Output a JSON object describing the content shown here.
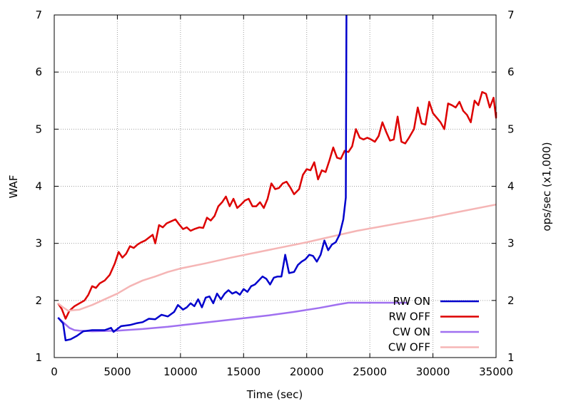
{
  "chart_data": {
    "type": "line",
    "xlabel": "Time (sec)",
    "ylabel": "WAF",
    "y2label": "ops/sec (x1,000)",
    "xlim": [
      0,
      35000
    ],
    "ylim": [
      1,
      7
    ],
    "y2lim": [
      1,
      7
    ],
    "grid": true,
    "legend_position": "bottom-right",
    "x_ticks": [
      0,
      5000,
      10000,
      15000,
      20000,
      25000,
      30000,
      35000
    ],
    "y_ticks": [
      1,
      2,
      3,
      4,
      5,
      6,
      7
    ],
    "y2_ticks": [
      1,
      2,
      3,
      4,
      5,
      6,
      7
    ],
    "series": [
      {
        "name": "RW ON",
        "color": "#0000cc",
        "axis": "y",
        "points": [
          [
            300,
            1.7
          ],
          [
            700,
            1.6
          ],
          [
            900,
            1.3
          ],
          [
            1300,
            1.32
          ],
          [
            1800,
            1.38
          ],
          [
            2300,
            1.46
          ],
          [
            3000,
            1.48
          ],
          [
            4000,
            1.48
          ],
          [
            4500,
            1.52
          ],
          [
            4700,
            1.45
          ],
          [
            5000,
            1.5
          ],
          [
            5300,
            1.55
          ],
          [
            6000,
            1.57
          ],
          [
            6500,
            1.6
          ],
          [
            7000,
            1.62
          ],
          [
            7500,
            1.68
          ],
          [
            8000,
            1.67
          ],
          [
            8500,
            1.75
          ],
          [
            9000,
            1.72
          ],
          [
            9500,
            1.8
          ],
          [
            9800,
            1.92
          ],
          [
            10200,
            1.84
          ],
          [
            10500,
            1.88
          ],
          [
            10800,
            1.95
          ],
          [
            11100,
            1.9
          ],
          [
            11400,
            2.02
          ],
          [
            11700,
            1.88
          ],
          [
            12000,
            2.05
          ],
          [
            12300,
            2.07
          ],
          [
            12600,
            1.95
          ],
          [
            12900,
            2.12
          ],
          [
            13200,
            2.02
          ],
          [
            13500,
            2.12
          ],
          [
            13800,
            2.18
          ],
          [
            14100,
            2.12
          ],
          [
            14400,
            2.15
          ],
          [
            14700,
            2.1
          ],
          [
            15000,
            2.2
          ],
          [
            15300,
            2.15
          ],
          [
            15600,
            2.25
          ],
          [
            15900,
            2.28
          ],
          [
            16200,
            2.35
          ],
          [
            16500,
            2.42
          ],
          [
            16800,
            2.38
          ],
          [
            17100,
            2.28
          ],
          [
            17400,
            2.4
          ],
          [
            17700,
            2.42
          ],
          [
            18000,
            2.42
          ],
          [
            18300,
            2.8
          ],
          [
            18600,
            2.48
          ],
          [
            19000,
            2.5
          ],
          [
            19300,
            2.62
          ],
          [
            19600,
            2.68
          ],
          [
            19900,
            2.72
          ],
          [
            20200,
            2.8
          ],
          [
            20500,
            2.78
          ],
          [
            20800,
            2.68
          ],
          [
            21100,
            2.8
          ],
          [
            21400,
            3.05
          ],
          [
            21700,
            2.88
          ],
          [
            22000,
            2.98
          ],
          [
            22300,
            3.02
          ],
          [
            22600,
            3.15
          ],
          [
            22900,
            3.42
          ],
          [
            23100,
            3.8
          ],
          [
            23150,
            7.0
          ]
        ]
      },
      {
        "name": "RW OFF",
        "color": "#dd0000",
        "axis": "y",
        "points": [
          [
            300,
            1.95
          ],
          [
            600,
            1.85
          ],
          [
            900,
            1.68
          ],
          [
            1200,
            1.82
          ],
          [
            1600,
            1.9
          ],
          [
            2000,
            1.95
          ],
          [
            2400,
            2.0
          ],
          [
            2700,
            2.1
          ],
          [
            3000,
            2.25
          ],
          [
            3300,
            2.22
          ],
          [
            3600,
            2.3
          ],
          [
            4000,
            2.35
          ],
          [
            4400,
            2.45
          ],
          [
            4800,
            2.65
          ],
          [
            5100,
            2.85
          ],
          [
            5400,
            2.75
          ],
          [
            5700,
            2.82
          ],
          [
            6000,
            2.95
          ],
          [
            6300,
            2.92
          ],
          [
            6600,
            2.98
          ],
          [
            6900,
            3.02
          ],
          [
            7200,
            3.05
          ],
          [
            7500,
            3.1
          ],
          [
            7800,
            3.15
          ],
          [
            8000,
            3.0
          ],
          [
            8300,
            3.32
          ],
          [
            8600,
            3.28
          ],
          [
            8900,
            3.35
          ],
          [
            9200,
            3.38
          ],
          [
            9600,
            3.42
          ],
          [
            9900,
            3.33
          ],
          [
            10200,
            3.25
          ],
          [
            10500,
            3.28
          ],
          [
            10800,
            3.22
          ],
          [
            11100,
            3.25
          ],
          [
            11500,
            3.28
          ],
          [
            11800,
            3.27
          ],
          [
            12100,
            3.45
          ],
          [
            12400,
            3.4
          ],
          [
            12700,
            3.48
          ],
          [
            13000,
            3.65
          ],
          [
            13300,
            3.72
          ],
          [
            13600,
            3.82
          ],
          [
            13900,
            3.65
          ],
          [
            14200,
            3.78
          ],
          [
            14500,
            3.62
          ],
          [
            14800,
            3.68
          ],
          [
            15100,
            3.75
          ],
          [
            15400,
            3.78
          ],
          [
            15700,
            3.65
          ],
          [
            16000,
            3.65
          ],
          [
            16300,
            3.72
          ],
          [
            16600,
            3.62
          ],
          [
            16900,
            3.78
          ],
          [
            17200,
            4.05
          ],
          [
            17500,
            3.95
          ],
          [
            17800,
            3.97
          ],
          [
            18100,
            4.05
          ],
          [
            18400,
            4.08
          ],
          [
            18700,
            3.98
          ],
          [
            19000,
            3.86
          ],
          [
            19400,
            3.95
          ],
          [
            19700,
            4.2
          ],
          [
            20000,
            4.3
          ],
          [
            20300,
            4.28
          ],
          [
            20600,
            4.42
          ],
          [
            20900,
            4.12
          ],
          [
            21200,
            4.28
          ],
          [
            21500,
            4.25
          ],
          [
            21800,
            4.45
          ],
          [
            22100,
            4.68
          ],
          [
            22400,
            4.5
          ],
          [
            22700,
            4.48
          ],
          [
            23000,
            4.62
          ],
          [
            23300,
            4.6
          ],
          [
            23600,
            4.7
          ],
          [
            23900,
            5.0
          ],
          [
            24200,
            4.85
          ],
          [
            24500,
            4.82
          ],
          [
            24800,
            4.85
          ],
          [
            25100,
            4.82
          ],
          [
            25400,
            4.78
          ],
          [
            25700,
            4.88
          ],
          [
            26000,
            5.12
          ],
          [
            26300,
            4.95
          ],
          [
            26600,
            4.8
          ],
          [
            26900,
            4.82
          ],
          [
            27200,
            5.22
          ],
          [
            27500,
            4.78
          ],
          [
            27800,
            4.75
          ],
          [
            28100,
            4.85
          ],
          [
            28500,
            5.0
          ],
          [
            28800,
            5.38
          ],
          [
            29100,
            5.1
          ],
          [
            29400,
            5.08
          ],
          [
            29700,
            5.48
          ],
          [
            30000,
            5.28
          ],
          [
            30300,
            5.2
          ],
          [
            30600,
            5.12
          ],
          [
            30900,
            5.0
          ],
          [
            31200,
            5.45
          ],
          [
            31500,
            5.42
          ],
          [
            31800,
            5.38
          ],
          [
            32100,
            5.48
          ],
          [
            32400,
            5.32
          ],
          [
            32700,
            5.25
          ],
          [
            33000,
            5.12
          ],
          [
            33300,
            5.5
          ],
          [
            33600,
            5.42
          ],
          [
            33900,
            5.65
          ],
          [
            34200,
            5.62
          ],
          [
            34500,
            5.38
          ],
          [
            34800,
            5.55
          ],
          [
            35000,
            5.2
          ],
          [
            35200,
            5.3
          ]
        ]
      },
      {
        "name": "CW ON",
        "color": "#a070f0",
        "axis": "y2",
        "points": [
          [
            300,
            1.7
          ],
          [
            800,
            1.6
          ],
          [
            1200,
            1.52
          ],
          [
            1600,
            1.48
          ],
          [
            2000,
            1.47
          ],
          [
            3000,
            1.46
          ],
          [
            5000,
            1.47
          ],
          [
            7000,
            1.5
          ],
          [
            9000,
            1.54
          ],
          [
            11000,
            1.59
          ],
          [
            13000,
            1.64
          ],
          [
            15000,
            1.69
          ],
          [
            17000,
            1.74
          ],
          [
            19000,
            1.8
          ],
          [
            21000,
            1.87
          ],
          [
            22500,
            1.93
          ],
          [
            23300,
            1.96
          ],
          [
            25000,
            1.96
          ],
          [
            27000,
            1.96
          ],
          [
            28000,
            1.96
          ]
        ]
      },
      {
        "name": "CW OFF",
        "color": "#f5b5b5",
        "axis": "y2",
        "points": [
          [
            300,
            1.95
          ],
          [
            700,
            1.88
          ],
          [
            1100,
            1.82
          ],
          [
            1500,
            1.83
          ],
          [
            2000,
            1.84
          ],
          [
            3000,
            1.92
          ],
          [
            4000,
            2.02
          ],
          [
            5000,
            2.12
          ],
          [
            6000,
            2.25
          ],
          [
            7000,
            2.35
          ],
          [
            8000,
            2.42
          ],
          [
            9000,
            2.5
          ],
          [
            10000,
            2.56
          ],
          [
            12000,
            2.65
          ],
          [
            14000,
            2.75
          ],
          [
            16000,
            2.84
          ],
          [
            18000,
            2.93
          ],
          [
            20000,
            3.02
          ],
          [
            22000,
            3.12
          ],
          [
            24000,
            3.22
          ],
          [
            26000,
            3.3
          ],
          [
            28000,
            3.38
          ],
          [
            30000,
            3.46
          ],
          [
            32000,
            3.55
          ],
          [
            35000,
            3.68
          ]
        ]
      }
    ]
  }
}
